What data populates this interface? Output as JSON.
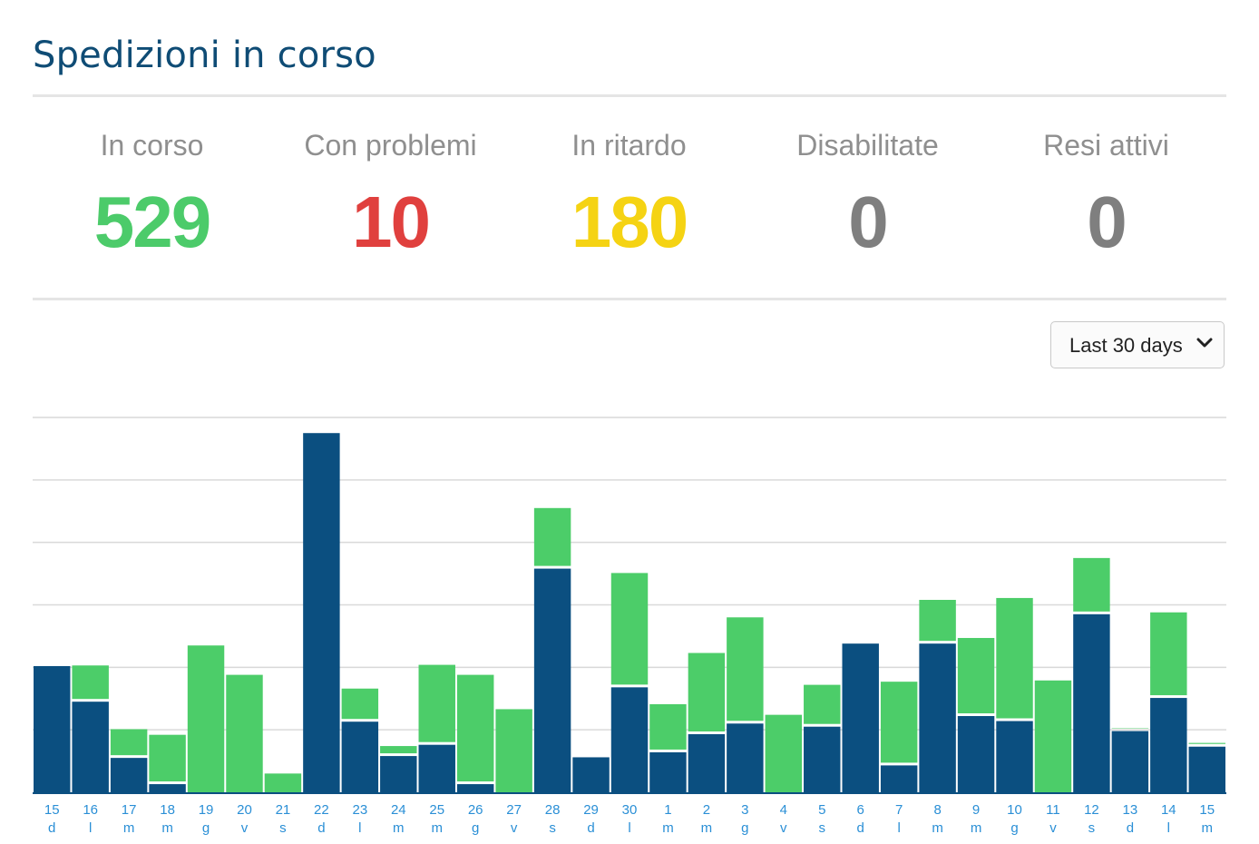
{
  "header": {
    "title": "Spedizioni in corso"
  },
  "stats": [
    {
      "label": "In corso",
      "value": "529",
      "color": "#4ccb6a"
    },
    {
      "label": "Con problemi",
      "value": "10",
      "color": "#e0403e"
    },
    {
      "label": "In ritardo",
      "value": "180",
      "color": "#f5d313"
    },
    {
      "label": "Disabilitate",
      "value": "0",
      "color": "#7f7f7f"
    },
    {
      "label": "Resi attivi",
      "value": "0",
      "color": "#7f7f7f"
    }
  ],
  "range_select": {
    "selected": "Last 30 days",
    "icon": "chevron-down-icon"
  },
  "chart_data": {
    "type": "bar",
    "stacked": true,
    "categories": [
      "15",
      "16",
      "17",
      "18",
      "19",
      "20",
      "21",
      "22",
      "23",
      "24",
      "25",
      "26",
      "27",
      "28",
      "29",
      "30",
      "1",
      "2",
      "3",
      "4",
      "5",
      "6",
      "7",
      "8",
      "9",
      "10",
      "11",
      "12",
      "13",
      "14",
      "15"
    ],
    "day_labels": [
      "d",
      "l",
      "m",
      "m",
      "g",
      "v",
      "s",
      "d",
      "l",
      "m",
      "m",
      "g",
      "v",
      "s",
      "d",
      "l",
      "m",
      "m",
      "g",
      "v",
      "s",
      "d",
      "l",
      "m",
      "m",
      "g",
      "v",
      "s",
      "d",
      "l",
      "m"
    ],
    "series": [
      {
        "color": "#0b4f80",
        "values": [
          20.2,
          14.5,
          5.5,
          1.3,
          0,
          0,
          0,
          57.5,
          11.3,
          5.8,
          7.6,
          1.3,
          0,
          35.8,
          5.6,
          16.8,
          6.4,
          9.3,
          11.0,
          0,
          10.5,
          23.8,
          4.3,
          23.8,
          12.2,
          11.4,
          0,
          28.5,
          9.8,
          15.1,
          7.3
        ]
      },
      {
        "color": "#4ccd69",
        "values": [
          0,
          5.8,
          4.6,
          7.9,
          23.5,
          18.8,
          3.0,
          0,
          5.3,
          1.6,
          12.8,
          17.5,
          13.3,
          9.7,
          0,
          18.3,
          7.7,
          13.0,
          17.0,
          12.4,
          6.7,
          0,
          13.4,
          7.0,
          12.5,
          19.7,
          17.9,
          9.0,
          0.5,
          13.7,
          0.6
        ]
      }
    ],
    "ylim": [
      0,
      60
    ],
    "grid": true,
    "colors": {
      "axis_label": "#2a8fd6",
      "grid": "#d9d9d9",
      "baseline": "#0b4f80"
    }
  }
}
